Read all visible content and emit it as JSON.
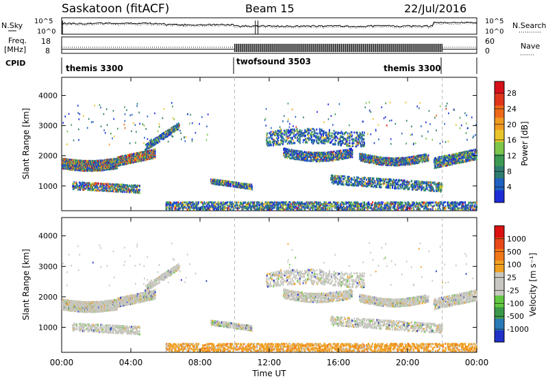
{
  "header": {
    "station": "Saskatoon (fitACF)",
    "beam": "Beam 15",
    "date": "22/Jul/2016"
  },
  "strip_labels": {
    "nsky": "N.Sky",
    "nsearch": "N.Search",
    "freq_line1": "Freq.",
    "freq_line2": "[MHz]",
    "nave": "Nave",
    "cpid": "CPID",
    "noise_ticks_left": [
      "10^5",
      "10^0"
    ],
    "noise_ticks_right": [
      "10^5",
      "10^0"
    ],
    "freq_ticks_left": [
      "18",
      "8"
    ],
    "nave_ticks_right": [
      "60",
      "0"
    ]
  },
  "cpid_segments": [
    {
      "label": "themis 3300",
      "start_h": 0,
      "end_h": 10.0
    },
    {
      "label": "twofsound 3503",
      "start_h": 10.0,
      "end_h": 22.0
    },
    {
      "label": "themis 3300",
      "start_h": 22.0,
      "end_h": 24.0
    }
  ],
  "chart_data": [
    {
      "type": "heatmap",
      "quantity": "Power",
      "ylabel": "Slant Range [km]",
      "ylim": [
        180,
        4600
      ],
      "yticks": [
        "1000",
        "2000",
        "3000",
        "4000"
      ],
      "ytick_values": [
        1000,
        2000,
        3000,
        4000
      ],
      "xlim_hours": [
        0,
        24
      ],
      "colorbar_label": "Power [dB]",
      "colorbar_ticks": [
        "4",
        "8",
        "12",
        "16",
        "20",
        "24",
        "28"
      ],
      "colorbar_tick_values": [
        4,
        8,
        12,
        16,
        20,
        24,
        28
      ],
      "colorbar_range": [
        0,
        31
      ],
      "colorbar_colors": [
        "#1c2dd8",
        "#2060c0",
        "#2e7d6e",
        "#3d9a52",
        "#7dc64a",
        "#e8c52a",
        "#f09a22",
        "#ec6a18",
        "#e0361c",
        "#d8101a"
      ]
    },
    {
      "type": "heatmap",
      "quantity": "Velocity",
      "ylabel": "Slant Range [km]",
      "ylim": [
        180,
        4600
      ],
      "yticks": [
        "1000",
        "2000",
        "3000",
        "4000"
      ],
      "ytick_values": [
        1000,
        2000,
        3000,
        4000
      ],
      "xlim_hours": [
        0,
        24
      ],
      "colorbar_label": "Velocity [m s⁻¹]",
      "colorbar_ticks": [
        "1000",
        "500",
        "100",
        "25",
        "-25",
        "-100",
        "-500",
        "-1000"
      ],
      "colorbar_colors": [
        "#2030c8",
        "#2a7ab8",
        "#3a9a4a",
        "#62c842",
        "#c8c8c0",
        "#c8c8c0",
        "#f0a020",
        "#f07818",
        "#e84818",
        "#dc1010"
      ]
    }
  ],
  "x_axis": {
    "label": "Time UT",
    "ticks": [
      "00:00",
      "04:00",
      "08:00",
      "12:00",
      "16:00",
      "20:00",
      "00:00"
    ],
    "tick_hours": [
      0,
      4,
      8,
      12,
      16,
      20,
      24
    ]
  },
  "colors": {
    "power_blue": "#2a4ad0",
    "power_green": "#3d9a52",
    "power_yellow": "#e8c52a",
    "power_red": "#d8101a",
    "vel_gray": "#c6c6be",
    "vel_orange": "#f0a020",
    "vel_green": "#62c842",
    "vel_blue": "#2030c8"
  }
}
